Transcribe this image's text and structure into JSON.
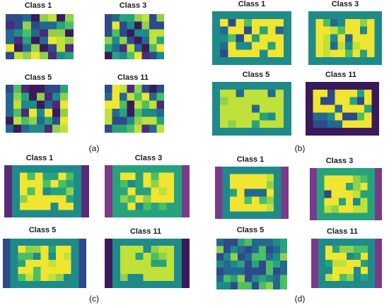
{
  "colors": {
    "palette": [
      "#3b1a5c",
      "#4a2a7a",
      "#2e4a8a",
      "#23698f",
      "#1f8a8a",
      "#27a37c",
      "#4cbf64",
      "#8fd14c",
      "#bfe13a",
      "#f0e530"
    ]
  },
  "panels": [
    {
      "id": "a",
      "label": "(a)",
      "class_labels": [
        "Class 1",
        "Class 3",
        "Class 5",
        "Class 11"
      ]
    },
    {
      "id": "b",
      "label": "(b)",
      "class_labels": [
        "Class 1",
        "Class 3",
        "Class 5",
        "Class 11"
      ]
    },
    {
      "id": "c",
      "label": "(c)",
      "class_labels": [
        "Class 1",
        "Class 3",
        "Class 5",
        "Class 11"
      ]
    },
    {
      "id": "d",
      "label": "(d)",
      "class_labels": [
        "Class 1",
        "Class 3",
        "Class 5",
        "Class 11"
      ]
    }
  ]
}
